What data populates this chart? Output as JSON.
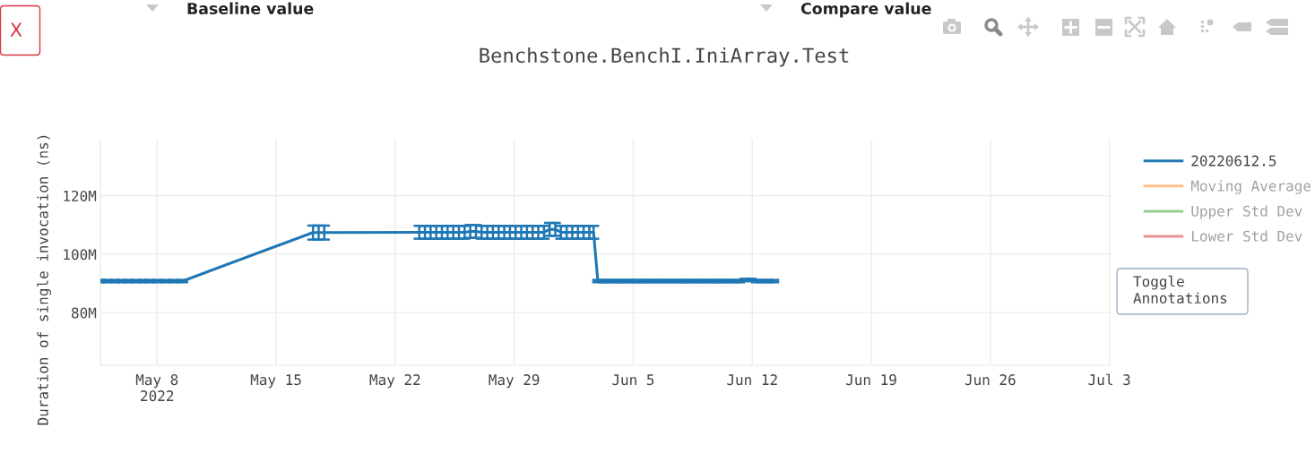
{
  "chart_data": {
    "type": "line",
    "title": "Benchstone.BenchI.IniArray.Test",
    "ylabel": "Duration of single invocation (ns)",
    "series": [
      {
        "name": "20220612.5",
        "color": "#1f77b4",
        "x": [
          "2022-05-04T16:00",
          "2022-05-05T02:00",
          "2022-05-05T12:00",
          "2022-05-05T22:00",
          "2022-05-06T08:00",
          "2022-05-06T18:00",
          "2022-05-07T04:00",
          "2022-05-07T14:00",
          "2022-05-08T00:00",
          "2022-05-08T12:00",
          "2022-05-09T00:00",
          "2022-05-09T12:00",
          "2022-05-17T04:00",
          "2022-05-17T12:00",
          "2022-05-17T20:00",
          "2022-05-23T10:00",
          "2022-05-23T18:00",
          "2022-05-24T02:00",
          "2022-05-24T10:00",
          "2022-05-24T18:00",
          "2022-05-25T02:00",
          "2022-05-25T10:00",
          "2022-05-25T18:00",
          "2022-05-26T02:00",
          "2022-05-26T10:00",
          "2022-05-26T18:00",
          "2022-05-27T02:00",
          "2022-05-27T10:00",
          "2022-05-27T18:00",
          "2022-05-28T02:00",
          "2022-05-28T10:00",
          "2022-05-28T18:00",
          "2022-05-29T02:00",
          "2022-05-29T10:00",
          "2022-05-29T18:00",
          "2022-05-30T02:00",
          "2022-05-30T10:00",
          "2022-05-30T18:00",
          "2022-05-31T02:00",
          "2022-05-31T10:00",
          "2022-05-31T18:00",
          "2022-06-01T02:00",
          "2022-06-01T10:00",
          "2022-06-01T18:00",
          "2022-06-02T02:00",
          "2022-06-02T10:00",
          "2022-06-02T16:00",
          "2022-06-02T22:00",
          "2022-06-03T06:00",
          "2022-06-03T14:00",
          "2022-06-03T22:00",
          "2022-06-04T06:00",
          "2022-06-04T14:00",
          "2022-06-04T22:00",
          "2022-06-05T06:00",
          "2022-06-05T14:00",
          "2022-06-05T22:00",
          "2022-06-06T06:00",
          "2022-06-06T14:00",
          "2022-06-06T22:00",
          "2022-06-07T06:00",
          "2022-06-07T14:00",
          "2022-06-07T22:00",
          "2022-06-08T06:00",
          "2022-06-08T14:00",
          "2022-06-08T22:00",
          "2022-06-09T06:00",
          "2022-06-09T14:00",
          "2022-06-09T22:00",
          "2022-06-10T06:00",
          "2022-06-10T14:00",
          "2022-06-10T22:00",
          "2022-06-11T06:00",
          "2022-06-11T14:00",
          "2022-06-11T22:00",
          "2022-06-12T06:00",
          "2022-06-12T14:00",
          "2022-06-12T22:00",
          "2022-06-13T06:00"
        ],
        "values": [
          90800000,
          90800000,
          90800000,
          90800000,
          90800000,
          90800000,
          90800000,
          90800000,
          90800000,
          90800000,
          90800000,
          90800000,
          107400000,
          107400000,
          107400000,
          107500000,
          107500000,
          107500000,
          107500000,
          107500000,
          107500000,
          107500000,
          107500000,
          107500000,
          107800000,
          107800000,
          107500000,
          107500000,
          107500000,
          107500000,
          107500000,
          107500000,
          107500000,
          107500000,
          107500000,
          107500000,
          107500000,
          107500000,
          108500000,
          108500000,
          107500000,
          107500000,
          107500000,
          107500000,
          107500000,
          107500000,
          107500000,
          90800000,
          90800000,
          90800000,
          90800000,
          90800000,
          90800000,
          90800000,
          90800000,
          90800000,
          90800000,
          90800000,
          90800000,
          90800000,
          90800000,
          90800000,
          90800000,
          90800000,
          90800000,
          90800000,
          90800000,
          90800000,
          90800000,
          90800000,
          90800000,
          90800000,
          90800000,
          91200000,
          91200000,
          90800000,
          90800000,
          90800000,
          90800000
        ],
        "errors": [
          400000,
          400000,
          400000,
          400000,
          400000,
          400000,
          400000,
          400000,
          400000,
          400000,
          400000,
          400000,
          2400000,
          2400000,
          2400000,
          2200000,
          2200000,
          2200000,
          2200000,
          2200000,
          2200000,
          2200000,
          2200000,
          2200000,
          2200000,
          2200000,
          2200000,
          2200000,
          2200000,
          2200000,
          2200000,
          2200000,
          2200000,
          2200000,
          2200000,
          2200000,
          2200000,
          2200000,
          2200000,
          2200000,
          2200000,
          2200000,
          2200000,
          2200000,
          2200000,
          2200000,
          2200000,
          400000,
          400000,
          400000,
          400000,
          400000,
          400000,
          400000,
          400000,
          400000,
          400000,
          400000,
          400000,
          400000,
          400000,
          400000,
          400000,
          400000,
          400000,
          400000,
          400000,
          400000,
          400000,
          400000,
          400000,
          400000,
          400000,
          400000,
          400000,
          400000,
          400000,
          400000,
          400000
        ]
      },
      {
        "name": "Moving Average",
        "color": "#ffbf86"
      },
      {
        "name": "Upper Std Dev",
        "color": "#95cf95"
      },
      {
        "name": "Lower Std Dev",
        "color": "#ea9393"
      }
    ],
    "xlim": [
      "2022-05-04T16:00",
      "2022-07-03T03:00"
    ],
    "xticks": [
      {
        "value": "2022-05-08",
        "label": "May 8\n2022"
      },
      {
        "value": "2022-05-15",
        "label": "May 15"
      },
      {
        "value": "2022-05-22",
        "label": "May 22"
      },
      {
        "value": "2022-05-29",
        "label": "May 29"
      },
      {
        "value": "2022-06-05",
        "label": "Jun 5"
      },
      {
        "value": "2022-06-12",
        "label": "Jun 12"
      },
      {
        "value": "2022-06-19",
        "label": "Jun 19"
      },
      {
        "value": "2022-06-26",
        "label": "Jun 26"
      },
      {
        "value": "2022-07-03",
        "label": "Jul 3"
      }
    ],
    "ylim": [
      62000000,
      139500000
    ],
    "yticks": [
      {
        "value": 80000000,
        "label": "80M"
      },
      {
        "value": 100000000,
        "label": "100M"
      },
      {
        "value": 120000000,
        "label": "120M"
      }
    ],
    "grid": true,
    "legend": "top right",
    "line_style": "solid",
    "annotations": [
      "X",
      "Baseline value",
      "Compare value",
      "Toggle\nAnnotations"
    ]
  }
}
